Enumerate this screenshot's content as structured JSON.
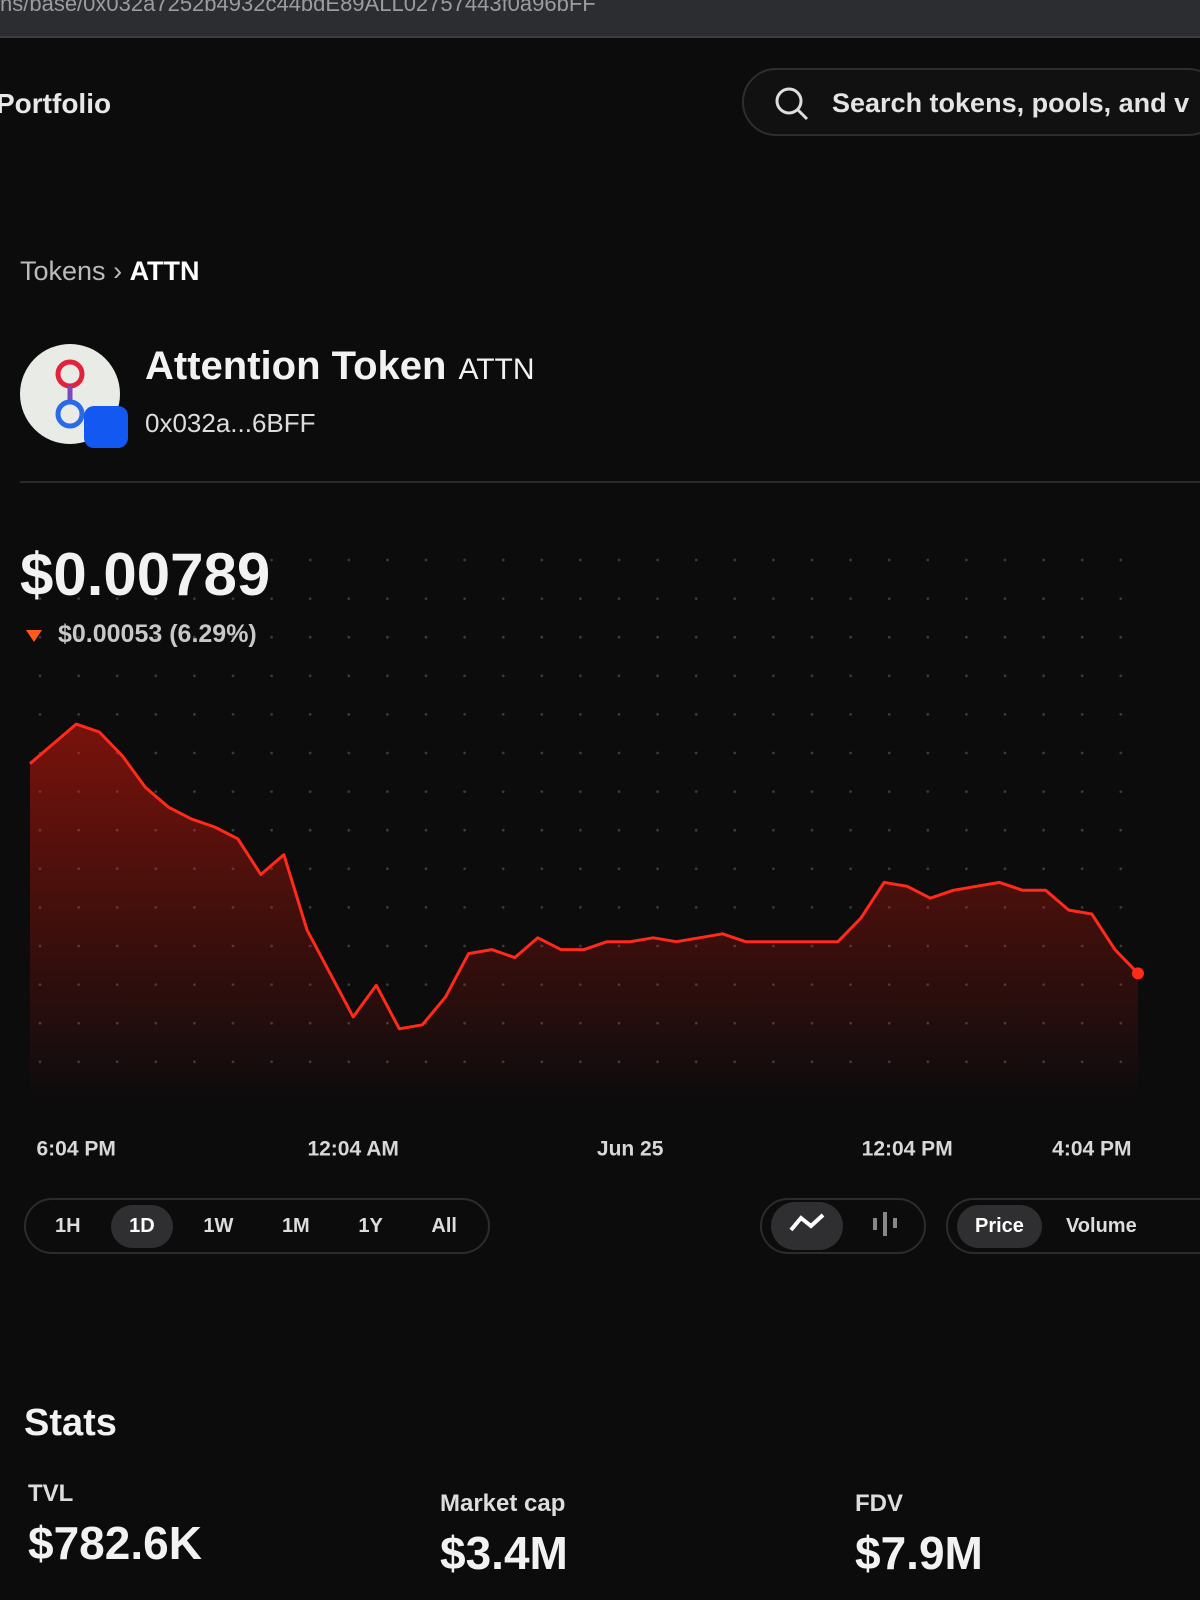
{
  "url_bar": "ns/base/0x032a7252b4932c44bdE89ALL02757443f0a96bFF",
  "nav": {
    "portfolio": "Portfolio",
    "search_placeholder": "Search tokens, pools, and v"
  },
  "breadcrumb": {
    "parent": "Tokens",
    "current": "ATTN"
  },
  "token": {
    "name": "Attention Token",
    "symbol": "ATTN",
    "address": "0x032a...6BFF"
  },
  "price": "$0.00789",
  "change": "$0.00053 (6.29%)",
  "chart_data": {
    "type": "line",
    "categories": [
      null,
      null,
      "6:04 PM",
      null,
      null,
      null,
      null,
      null,
      null,
      null,
      null,
      null,
      null,
      null,
      "12:04 AM",
      null,
      null,
      null,
      null,
      null,
      null,
      null,
      null,
      null,
      null,
      null,
      "Jun 25",
      null,
      null,
      null,
      null,
      null,
      null,
      null,
      null,
      null,
      null,
      null,
      "12:04 PM",
      null,
      null,
      null,
      null,
      null,
      null,
      null,
      "4:04 PM",
      null,
      null
    ],
    "values": [
      0.00842,
      0.00847,
      0.00852,
      0.0085,
      0.00844,
      0.00836,
      0.00831,
      0.00828,
      0.00826,
      0.00823,
      0.00814,
      0.00819,
      0.008,
      0.00789,
      0.00778,
      0.00786,
      0.00775,
      0.00776,
      0.00783,
      0.00794,
      0.00795,
      0.00793,
      0.00798,
      0.00795,
      0.00795,
      0.00797,
      0.00797,
      0.00798,
      0.00797,
      0.00798,
      0.00799,
      0.00797,
      0.00797,
      0.00797,
      0.00797,
      0.00797,
      0.00803,
      0.00812,
      0.00811,
      0.00808,
      0.0081,
      0.00811,
      0.00812,
      0.0081,
      0.0081,
      0.00805,
      0.00804,
      0.00795,
      0.00789
    ],
    "color": "#ff2a1a",
    "ylim": [
      0.00757,
      0.00896
    ]
  },
  "time_ranges": {
    "options": [
      "1H",
      "1D",
      "1W",
      "1M",
      "1Y",
      "All"
    ],
    "active": 1
  },
  "metric_toggle": {
    "options": [
      "Price",
      "Volume"
    ],
    "active": 0
  },
  "stats": {
    "title": "Stats",
    "items": [
      {
        "label": "TVL",
        "value": "$782.6K"
      },
      {
        "label": "Market cap",
        "value": "$3.4M"
      },
      {
        "label": "FDV",
        "value": "$7.9M"
      }
    ]
  }
}
